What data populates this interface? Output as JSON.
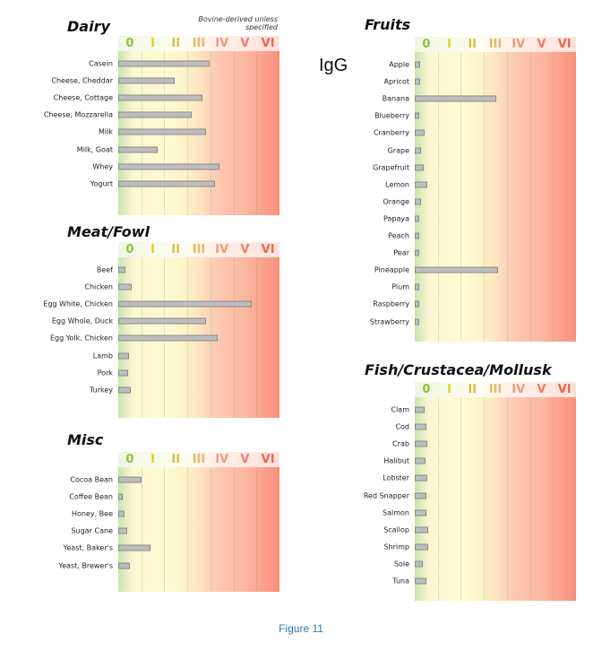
{
  "label": "IgG",
  "caption": "Figure 11",
  "chart_data": [
    {
      "type": "bar",
      "orientation": "horizontal",
      "title": "Dairy",
      "note": "Bovine-derived unless specified",
      "classes": [
        "0",
        "I",
        "II",
        "III",
        "IV",
        "V",
        "VI"
      ],
      "xlim": [
        0,
        7
      ],
      "categories": [
        "Casein",
        "Cheese, Cheddar",
        "Cheese, Cottage",
        "Cheese, Mozzarella",
        "Milk",
        "Milk, Goat",
        "Whey",
        "Yogurt"
      ],
      "values": [
        3.95,
        2.45,
        3.65,
        3.2,
        3.8,
        1.7,
        4.4,
        4.2
      ]
    },
    {
      "type": "bar",
      "orientation": "horizontal",
      "title": "Meat/Fowl",
      "classes": [
        "0",
        "I",
        "II",
        "III",
        "IV",
        "V",
        "VI"
      ],
      "xlim": [
        0,
        7
      ],
      "categories": [
        "Beef",
        "Chicken",
        "Egg White, Chicken",
        "Egg Whole, Duck",
        "Egg Yolk, Chicken",
        "Lamb",
        "Pork",
        "Turkey"
      ],
      "values": [
        0.3,
        0.6,
        5.8,
        3.8,
        4.3,
        0.45,
        0.42,
        0.55
      ]
    },
    {
      "type": "bar",
      "orientation": "horizontal",
      "title": "Misc",
      "classes": [
        "0",
        "I",
        "II",
        "III",
        "IV",
        "V",
        "VI"
      ],
      "xlim": [
        0,
        7
      ],
      "categories": [
        "Cocoa Bean",
        "Coffee Bean",
        "Honey, Bee",
        "Sugar Cane",
        "Yeast, Baker's",
        "Yeast, Brewer's"
      ],
      "values": [
        1.0,
        0.16,
        0.27,
        0.38,
        1.4,
        0.5
      ]
    },
    {
      "type": "bar",
      "orientation": "horizontal",
      "title": "Fruits",
      "classes": [
        "0",
        "I",
        "II",
        "III",
        "IV",
        "V",
        "VI"
      ],
      "xlim": [
        0,
        7
      ],
      "categories": [
        "Apple",
        "Apricot",
        "Banana",
        "Blueberry",
        "Cranberry",
        "Grape",
        "Grapefruit",
        "Lemon",
        "Orange",
        "Papaya",
        "Peach",
        "Pear",
        "Pineapple",
        "Plum",
        "Raspberry",
        "Strawberry"
      ],
      "values": [
        0.23,
        0.23,
        3.55,
        0.12,
        0.43,
        0.27,
        0.38,
        0.54,
        0.27,
        0.19,
        0.12,
        0.16,
        3.62,
        0.2,
        0.12,
        0.2
      ]
    },
    {
      "type": "bar",
      "orientation": "horizontal",
      "title": "Fish/Crustacea/Mollusk",
      "classes": [
        "0",
        "I",
        "II",
        "III",
        "IV",
        "V",
        "VI"
      ],
      "xlim": [
        0,
        7
      ],
      "categories": [
        "Clam",
        "Cod",
        "Crab",
        "Halibut",
        "Lobster",
        "Red Snapper",
        "Salmon",
        "Scallop",
        "Shrimp",
        "Sole",
        "Tuna"
      ],
      "values": [
        0.43,
        0.5,
        0.55,
        0.47,
        0.55,
        0.5,
        0.5,
        0.58,
        0.58,
        0.35,
        0.5
      ]
    }
  ],
  "class_colors": [
    "#8cc43c",
    "#e6d020",
    "#d6c048",
    "#e8b868",
    "#f09a78",
    "#f07e66",
    "#ee6452"
  ],
  "bar_color": "#bdbdbd"
}
